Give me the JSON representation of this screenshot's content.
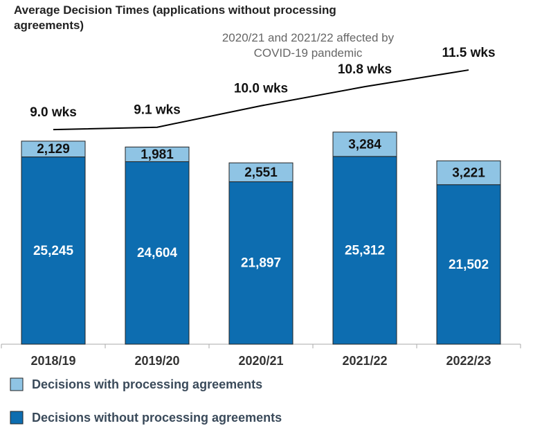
{
  "chart_data": {
    "type": "bar",
    "stacked": true,
    "title": "Average Decision Times (applications without processing agreements)",
    "annotation": "2020/21 and 2021/22 affected by COVID-19 pandemic",
    "categories": [
      "2018/19",
      "2019/20",
      "2020/21",
      "2021/22",
      "2022/23"
    ],
    "series": [
      {
        "name": "Decisions without processing agreements",
        "color": "#0d6db0",
        "values": [
          25245,
          24604,
          21897,
          25312,
          21502
        ],
        "value_labels": [
          "25,245",
          "24,604",
          "21,897",
          "25,312",
          "21,502"
        ]
      },
      {
        "name": "Decisions with processing agreements",
        "color": "#8fc4e4",
        "values": [
          2129,
          1981,
          2551,
          3284,
          3221
        ],
        "value_labels": [
          "2,129",
          "1,981",
          "2,551",
          "3,284",
          "3,221"
        ]
      },
      {
        "type": "line",
        "axis": "y2",
        "color": "#000000",
        "values": [
          9.0,
          9.1,
          10.0,
          10.8,
          11.5
        ],
        "value_labels": [
          "9.0 wks",
          "9.1 wks",
          "10.0 wks",
          "10.8 wks",
          "11.5 wks"
        ]
      }
    ],
    "ylim": [
      0,
      45000
    ],
    "y2lim": [
      0,
      14
    ],
    "grid": false
  }
}
